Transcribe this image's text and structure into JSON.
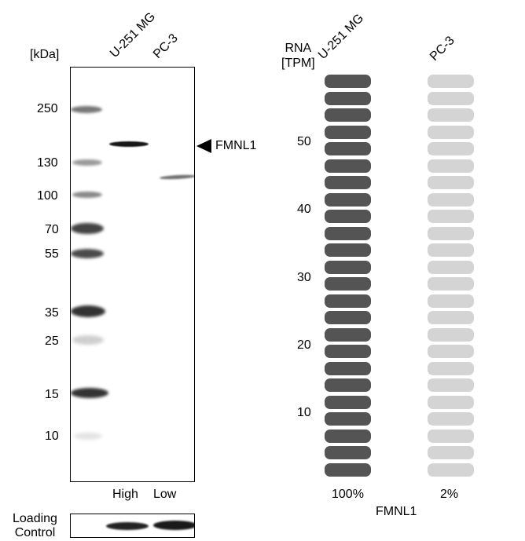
{
  "western_blot": {
    "unit_label": "[kDa]",
    "lanes": [
      "U-251 MG",
      "PC-3"
    ],
    "marker_labels": [
      "250",
      "130",
      "100",
      "70",
      "55",
      "35",
      "25",
      "15",
      "10"
    ],
    "target_label": "FMNL1",
    "expression_labels": [
      "High",
      "Low"
    ],
    "loading_control_label": [
      "Loading",
      "Control"
    ]
  },
  "rna": {
    "axis_title": [
      "RNA",
      "[TPM]"
    ],
    "columns": [
      "U-251 MG",
      "PC-3"
    ],
    "ticks": [
      "50",
      "40",
      "30",
      "20",
      "10"
    ],
    "percentages": [
      "100%",
      "2%"
    ],
    "gene": "FMNL1",
    "colors": {
      "high": "#545454",
      "low": "#d4d4d4"
    }
  }
}
